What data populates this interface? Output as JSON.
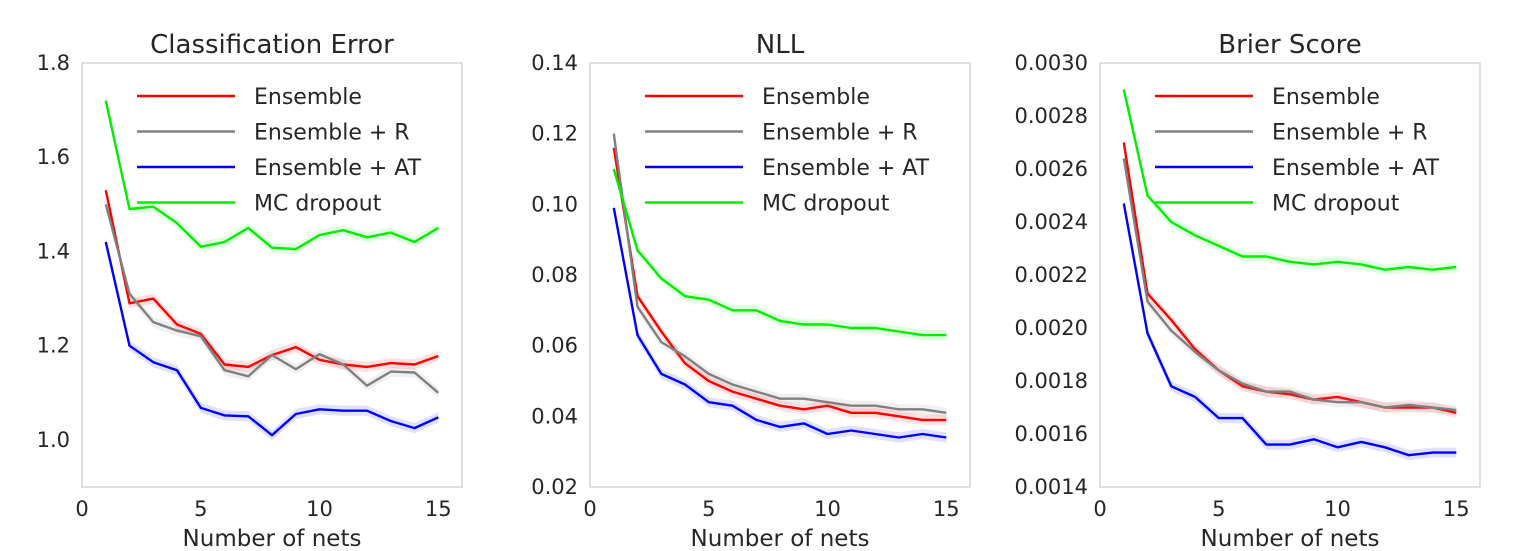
{
  "figure": {
    "panels": [
      {
        "title": "Classification Error",
        "xlabel": "Number of nets"
      },
      {
        "title": "NLL",
        "xlabel": "Number of nets"
      },
      {
        "title": "Brier Score",
        "xlabel": "Number of nets"
      }
    ],
    "colors": {
      "Ensemble": "#ff0000",
      "Ensemble + R": "#808080",
      "Ensemble + AT": "#0000ff",
      "MC dropout": "#00ee00"
    }
  },
  "chart_data": [
    {
      "type": "line",
      "title": "Classification Error",
      "xlabel": "Number of nets",
      "ylabel": "",
      "xlim": [
        0,
        16
      ],
      "ylim": [
        0.9,
        1.8
      ],
      "xticks": [
        "0",
        "5",
        "10",
        "15"
      ],
      "xtick_values": [
        0,
        5,
        10,
        15
      ],
      "yticks": [
        "1.0",
        "1.2",
        "1.4",
        "1.6",
        "1.8"
      ],
      "ytick_values": [
        1.0,
        1.2,
        1.4,
        1.6,
        1.8
      ],
      "grid": false,
      "legend_position": "top-right",
      "x": [
        1,
        2,
        3,
        4,
        5,
        6,
        7,
        8,
        9,
        10,
        11,
        12,
        13,
        14,
        15
      ],
      "series": [
        {
          "name": "Ensemble",
          "color": "#ff0000",
          "values": [
            1.53,
            1.29,
            1.3,
            1.245,
            1.225,
            1.16,
            1.155,
            1.18,
            1.197,
            1.17,
            1.16,
            1.155,
            1.163,
            1.16,
            1.178
          ]
        },
        {
          "name": "Ensemble + R",
          "color": "#808080",
          "values": [
            1.5,
            1.31,
            1.25,
            1.232,
            1.22,
            1.148,
            1.135,
            1.18,
            1.15,
            1.182,
            1.16,
            1.115,
            1.145,
            1.143,
            1.1
          ]
        },
        {
          "name": "Ensemble + AT",
          "color": "#0000ff",
          "values": [
            1.42,
            1.2,
            1.165,
            1.148,
            1.068,
            1.052,
            1.05,
            1.01,
            1.055,
            1.065,
            1.062,
            1.062,
            1.04,
            1.025,
            1.048
          ]
        },
        {
          "name": "MC dropout",
          "color": "#00ee00",
          "values": [
            1.72,
            1.49,
            1.495,
            1.46,
            1.41,
            1.42,
            1.45,
            1.408,
            1.405,
            1.435,
            1.445,
            1.43,
            1.44,
            1.42,
            1.45
          ]
        }
      ]
    },
    {
      "type": "line",
      "title": "NLL",
      "xlabel": "Number of nets",
      "ylabel": "",
      "xlim": [
        0,
        16
      ],
      "ylim": [
        0.02,
        0.14
      ],
      "xticks": [
        "0",
        "5",
        "10",
        "15"
      ],
      "xtick_values": [
        0,
        5,
        10,
        15
      ],
      "yticks": [
        "0.02",
        "0.04",
        "0.06",
        "0.08",
        "0.10",
        "0.12",
        "0.14"
      ],
      "ytick_values": [
        0.02,
        0.04,
        0.06,
        0.08,
        0.1,
        0.12,
        0.14
      ],
      "grid": false,
      "legend_position": "top-right",
      "x": [
        1,
        2,
        3,
        4,
        5,
        6,
        7,
        8,
        9,
        10,
        11,
        12,
        13,
        14,
        15
      ],
      "series": [
        {
          "name": "Ensemble",
          "color": "#ff0000",
          "values": [
            0.116,
            0.074,
            0.064,
            0.055,
            0.05,
            0.047,
            0.045,
            0.043,
            0.042,
            0.043,
            0.041,
            0.041,
            0.04,
            0.039,
            0.039
          ]
        },
        {
          "name": "Ensemble + R",
          "color": "#808080",
          "values": [
            0.12,
            0.071,
            0.061,
            0.057,
            0.052,
            0.049,
            0.047,
            0.045,
            0.045,
            0.044,
            0.043,
            0.043,
            0.042,
            0.042,
            0.041
          ]
        },
        {
          "name": "Ensemble + AT",
          "color": "#0000ff",
          "values": [
            0.099,
            0.063,
            0.052,
            0.049,
            0.044,
            0.043,
            0.039,
            0.037,
            0.038,
            0.035,
            0.036,
            0.035,
            0.034,
            0.035,
            0.034
          ]
        },
        {
          "name": "MC dropout",
          "color": "#00ee00",
          "values": [
            0.11,
            0.087,
            0.079,
            0.074,
            0.073,
            0.07,
            0.07,
            0.067,
            0.066,
            0.066,
            0.065,
            0.065,
            0.064,
            0.063,
            0.063
          ]
        }
      ]
    },
    {
      "type": "line",
      "title": "Brier Score",
      "xlabel": "Number of nets",
      "ylabel": "",
      "xlim": [
        0,
        16
      ],
      "ylim": [
        0.0014,
        0.003
      ],
      "xticks": [
        "0",
        "5",
        "10",
        "15"
      ],
      "xtick_values": [
        0,
        5,
        10,
        15
      ],
      "yticks": [
        "0.0014",
        "0.0016",
        "0.0018",
        "0.0020",
        "0.0022",
        "0.0024",
        "0.0026",
        "0.0028",
        "0.0030"
      ],
      "ytick_values": [
        0.0014,
        0.0016,
        0.0018,
        0.002,
        0.0022,
        0.0024,
        0.0026,
        0.0028,
        0.003
      ],
      "grid": false,
      "legend_position": "top-right",
      "x": [
        1,
        2,
        3,
        4,
        5,
        6,
        7,
        8,
        9,
        10,
        11,
        12,
        13,
        14,
        15
      ],
      "series": [
        {
          "name": "Ensemble",
          "color": "#ff0000",
          "values": [
            0.0027,
            0.00213,
            0.00203,
            0.00192,
            0.00184,
            0.00178,
            0.00176,
            0.00175,
            0.00173,
            0.00174,
            0.00172,
            0.0017,
            0.0017,
            0.0017,
            0.00168
          ]
        },
        {
          "name": "Ensemble + R",
          "color": "#808080",
          "values": [
            0.00264,
            0.0021,
            0.00199,
            0.00191,
            0.00184,
            0.00179,
            0.00176,
            0.00176,
            0.00173,
            0.00172,
            0.00172,
            0.0017,
            0.00171,
            0.0017,
            0.00169
          ]
        },
        {
          "name": "Ensemble + AT",
          "color": "#0000ff",
          "values": [
            0.00247,
            0.00198,
            0.00178,
            0.00174,
            0.00166,
            0.00166,
            0.00156,
            0.00156,
            0.00158,
            0.00155,
            0.00157,
            0.00155,
            0.00152,
            0.00153,
            0.00153
          ]
        },
        {
          "name": "MC dropout",
          "color": "#00ee00",
          "values": [
            0.0029,
            0.0025,
            0.0024,
            0.00235,
            0.00231,
            0.00227,
            0.00227,
            0.00225,
            0.00224,
            0.00225,
            0.00224,
            0.00222,
            0.00223,
            0.00222,
            0.00223
          ]
        }
      ]
    }
  ]
}
